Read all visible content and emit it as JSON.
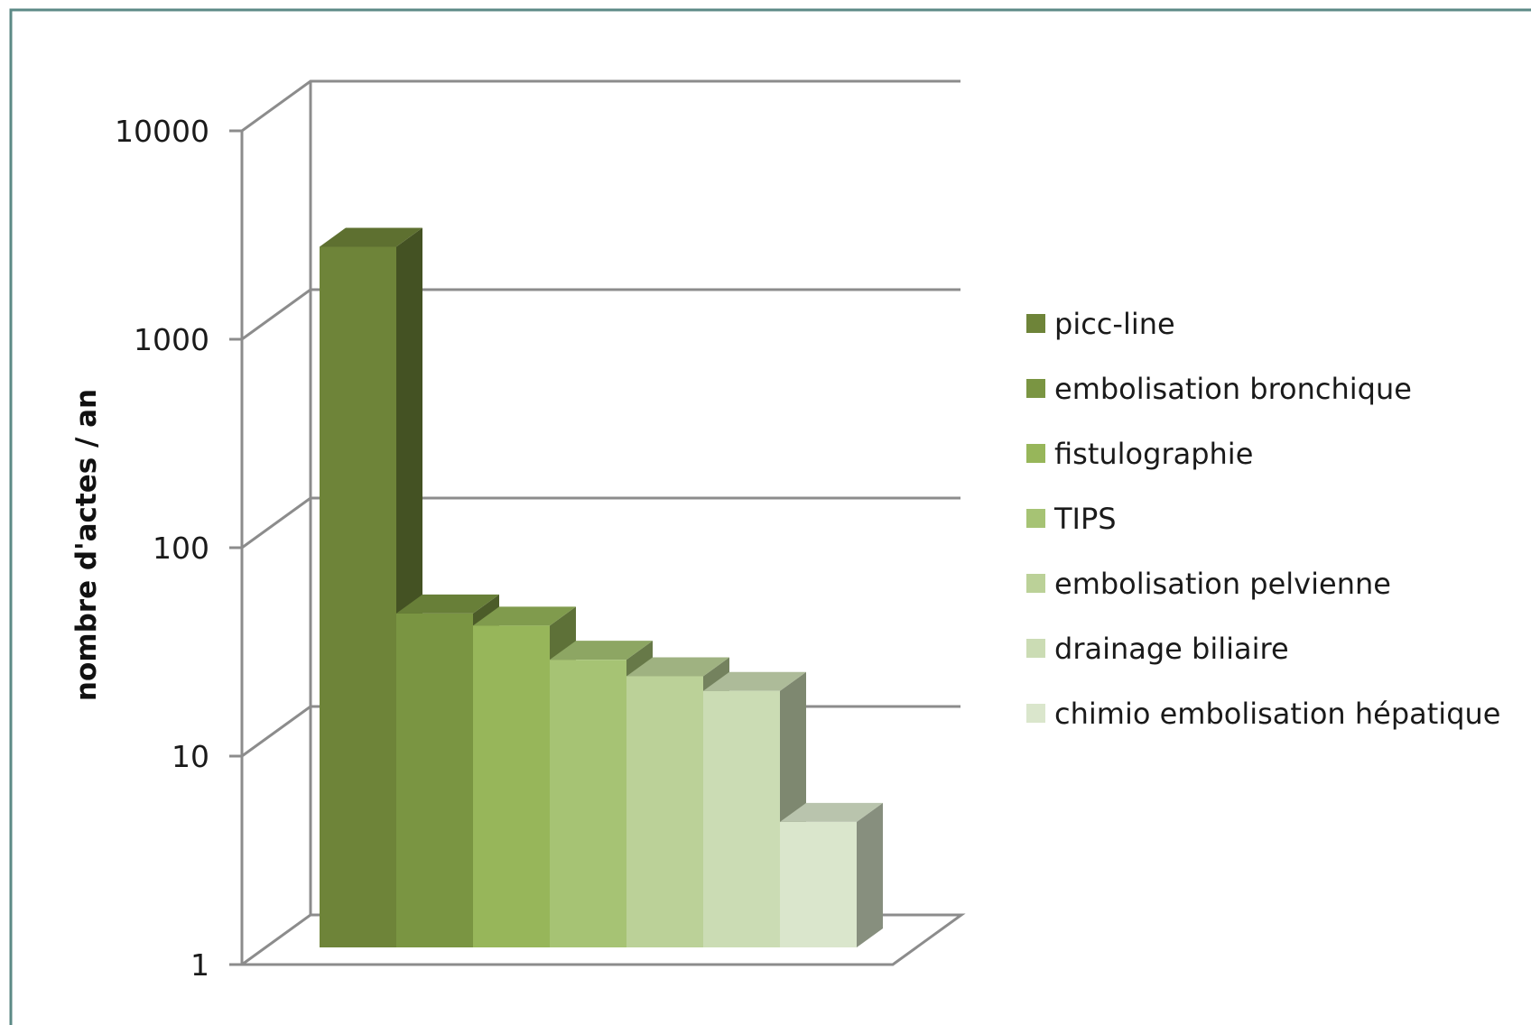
{
  "chart_data": {
    "type": "bar",
    "style": "3d",
    "title": "",
    "xlabel": "",
    "ylabel": "nombre d'actes / an",
    "yscale": "log",
    "ylim": [
      1,
      10000
    ],
    "yticks": [
      "1",
      "10",
      "100",
      "1000",
      "10000"
    ],
    "grid": true,
    "legend_position": "right",
    "categories": [
      "picc-line",
      "embolisation bronchique",
      "fistulographie",
      "TIPS",
      "embolisation pelvienne",
      "drainage biliaire",
      "chimio embolisation hépatique"
    ],
    "values": [
      2300,
      40,
      35,
      24,
      20,
      17,
      4
    ],
    "colors": [
      "#6e8439",
      "#7a9542",
      "#97b65a",
      "#a6c374",
      "#bbd198",
      "#cbdcb4",
      "#dae6cc"
    ]
  }
}
